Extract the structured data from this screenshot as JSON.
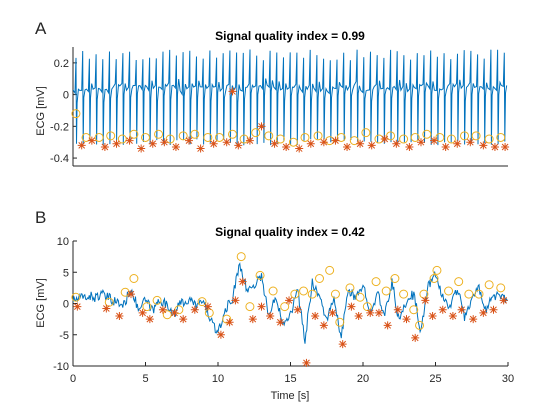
{
  "chart_data": [
    {
      "panel_label": "A",
      "type": "line",
      "title": "Signal quality index = 0.99",
      "xlabel": "",
      "ylabel": "ECG [mV]",
      "xlim": [
        0,
        30
      ],
      "ylim": [
        -0.45,
        0.3
      ],
      "yticks": [
        -0.4,
        -0.2,
        0,
        0.2
      ],
      "ytick_labels": [
        "-0.4",
        "-0.2",
        "0",
        "0.2"
      ],
      "xticks_shown": false,
      "box": false,
      "colors": {
        "signal": "#0072bd",
        "star": "#d95319",
        "circle": "#edb120"
      },
      "series": [
        {
          "marker": "line",
          "description_of_values": "regular ECG, baseline about 0.04 mV, R peaks about 0.25 mV, troughs about -0.30 mV, about 2 beats per second",
          "x": [
            0,
            30
          ],
          "baseline_mV": 0.04,
          "peak_mV": 0.25,
          "trough_mV": -0.3,
          "beat_rate_per_s": 2.15
        },
        {
          "marker": "circle",
          "x": [
            0.2,
            0.9,
            1.8,
            2.6,
            3.4,
            4.2,
            5.0,
            5.9,
            6.7,
            7.6,
            8.4,
            9.3,
            10.1,
            11.0,
            11.8,
            12.6,
            13.5,
            14.3,
            15.2,
            16.0,
            16.9,
            17.7,
            18.5,
            19.4,
            20.2,
            21.1,
            21.9,
            22.8,
            23.6,
            24.4,
            25.3,
            26.1,
            27.0,
            27.8,
            28.7,
            29.5
          ],
          "y": [
            -0.12,
            -0.27,
            -0.27,
            -0.26,
            -0.28,
            -0.25,
            -0.27,
            -0.25,
            -0.28,
            -0.26,
            -0.25,
            -0.27,
            -0.27,
            -0.25,
            -0.28,
            -0.24,
            -0.26,
            -0.28,
            -0.3,
            -0.27,
            -0.26,
            -0.29,
            -0.27,
            -0.29,
            -0.24,
            -0.28,
            -0.26,
            -0.28,
            -0.27,
            -0.25,
            -0.27,
            -0.28,
            -0.26,
            -0.26,
            -0.28,
            -0.27
          ]
        },
        {
          "marker": "star",
          "x": [
            0.6,
            1.3,
            2.2,
            3.0,
            3.9,
            4.7,
            5.5,
            6.3,
            7.1,
            8.0,
            8.8,
            9.7,
            10.6,
            11.4,
            11.0,
            12.2,
            13.0,
            13.9,
            14.7,
            15.6,
            16.4,
            17.3,
            18.1,
            18.9,
            19.8,
            20.6,
            21.5,
            22.3,
            23.2,
            24.0,
            24.9,
            25.7,
            26.5,
            27.4,
            28.3,
            29.1,
            29.8
          ],
          "y": [
            -0.32,
            -0.29,
            -0.33,
            -0.31,
            -0.29,
            -0.34,
            -0.31,
            -0.3,
            -0.33,
            -0.29,
            -0.34,
            -0.31,
            -0.3,
            -0.32,
            0.02,
            -0.29,
            -0.2,
            -0.31,
            -0.33,
            -0.34,
            -0.31,
            -0.3,
            -0.29,
            -0.33,
            -0.31,
            -0.32,
            -0.28,
            -0.31,
            -0.33,
            -0.3,
            -0.29,
            -0.33,
            -0.31,
            -0.3,
            -0.32,
            -0.33,
            -0.33
          ]
        }
      ]
    },
    {
      "panel_label": "B",
      "type": "line",
      "title": "Signal quality index = 0.42",
      "xlabel": "Time [s]",
      "ylabel": "ECG [mV]",
      "xlim": [
        0,
        30
      ],
      "ylim": [
        -10,
        10
      ],
      "xticks": [
        0,
        5,
        10,
        15,
        20,
        25,
        30
      ],
      "xtick_labels": [
        "0",
        "5",
        "10",
        "15",
        "20",
        "25",
        "30"
      ],
      "yticks": [
        -10,
        -5,
        0,
        5,
        10
      ],
      "ytick_labels": [
        "-10",
        "-5",
        "0",
        "5",
        "10"
      ],
      "box": false,
      "colors": {
        "signal": "#0072bd",
        "star": "#d95319",
        "circle": "#edb120"
      },
      "series": [
        {
          "marker": "line",
          "description_of_values": "noisy ECG with large baseline wander, excursions between about -9.5 and 8 mV",
          "x": [
            0.0,
            0.5,
            1.0,
            1.5,
            2.0,
            2.5,
            3.0,
            3.5,
            4.0,
            4.5,
            5.0,
            5.5,
            6.0,
            6.5,
            7.0,
            7.5,
            8.0,
            8.5,
            9.0,
            9.5,
            10.0,
            10.5,
            11.0,
            11.5,
            12.0,
            12.5,
            13.0,
            13.5,
            14.0,
            14.5,
            15.0,
            15.5,
            16.0,
            16.5,
            17.0,
            17.5,
            18.0,
            18.5,
            19.0,
            19.5,
            20.0,
            20.5,
            21.0,
            21.5,
            22.0,
            22.5,
            23.0,
            23.5,
            24.0,
            24.5,
            25.0,
            25.5,
            26.0,
            26.5,
            27.0,
            27.5,
            28.0,
            28.5,
            29.0,
            29.5,
            30.0
          ],
          "y": [
            0.5,
            0.8,
            1.2,
            1.0,
            1.4,
            0.8,
            0.2,
            -0.3,
            2.5,
            -1.0,
            0.5,
            -1.2,
            0.8,
            -0.5,
            -1.5,
            0.2,
            0.5,
            -0.3,
            0.2,
            -2.5,
            -5.0,
            -1.0,
            0.8,
            6.5,
            2.0,
            3.0,
            4.5,
            -2.0,
            1.0,
            -3.0,
            -1.5,
            2.0,
            -6.0,
            3.5,
            1.0,
            -2.5,
            0.5,
            -5.5,
            2.5,
            0.5,
            3.0,
            -1.0,
            1.5,
            -2.0,
            3.5,
            -3.0,
            0.5,
            1.5,
            -4.5,
            3.0,
            4.5,
            1.0,
            -0.5,
            2.5,
            -2.0,
            0.5,
            2.5,
            -1.0,
            1.5,
            0.8,
            0.5
          ]
        },
        {
          "marker": "circle",
          "x": [
            0.2,
            2.5,
            3.6,
            4.2,
            5.1,
            5.8,
            6.5,
            7.3,
            8.9,
            9.4,
            10.6,
            11.6,
            12.2,
            12.9,
            13.8,
            14.6,
            15.3,
            15.9,
            16.5,
            17.0,
            17.7,
            18.1,
            18.4,
            19.1,
            19.8,
            20.3,
            20.9,
            21.6,
            22.2,
            22.8,
            23.5,
            23.9,
            24.2,
            24.9,
            25.1,
            25.9,
            26.6,
            27.3,
            28.0,
            28.7,
            29.5
          ],
          "y": [
            1.0,
            0.2,
            1.8,
            4.0,
            -0.5,
            0.5,
            -1.8,
            -1.0,
            0.3,
            -1.5,
            -2.5,
            7.5,
            -0.5,
            4.5,
            2.0,
            -0.5,
            1.5,
            2.0,
            1.5,
            4.0,
            5.3,
            1.5,
            -3.0,
            2.5,
            1.0,
            -0.5,
            3.5,
            2.0,
            4.0,
            1.5,
            -1.0,
            -3.5,
            1.5,
            4.0,
            5.3,
            2.0,
            3.5,
            1.5,
            1.5,
            3.0,
            2.5
          ]
        },
        {
          "marker": "star",
          "x": [
            0.3,
            2.3,
            3.2,
            4.0,
            4.8,
            5.3,
            6.2,
            7.0,
            7.6,
            8.4,
            9.3,
            10.2,
            10.8,
            11.2,
            11.7,
            12.4,
            13.0,
            13.6,
            14.3,
            14.9,
            15.5,
            16.1,
            16.7,
            17.3,
            17.9,
            18.6,
            19.2,
            19.7,
            20.5,
            21.1,
            21.7,
            22.4,
            23.0,
            23.6,
            24.3,
            24.8,
            25.5,
            26.2,
            26.8,
            27.6,
            28.3,
            29.0,
            29.7
          ],
          "y": [
            -0.5,
            -0.8,
            -2.0,
            1.5,
            -1.5,
            -2.5,
            -1.0,
            -1.5,
            -2.5,
            -1.0,
            -0.5,
            -5.0,
            -3.0,
            0.5,
            3.5,
            -2.5,
            -0.5,
            -2.0,
            -3.0,
            0.5,
            -1.0,
            -9.5,
            -2.0,
            -3.5,
            -1.5,
            -6.5,
            -0.5,
            -2.0,
            -1.5,
            -1.5,
            -3.5,
            -1.0,
            -2.5,
            -5.5,
            0.5,
            -2.0,
            -1.0,
            -2.0,
            -1.0,
            -2.5,
            -1.5,
            -1.0,
            0.5
          ]
        }
      ]
    }
  ]
}
